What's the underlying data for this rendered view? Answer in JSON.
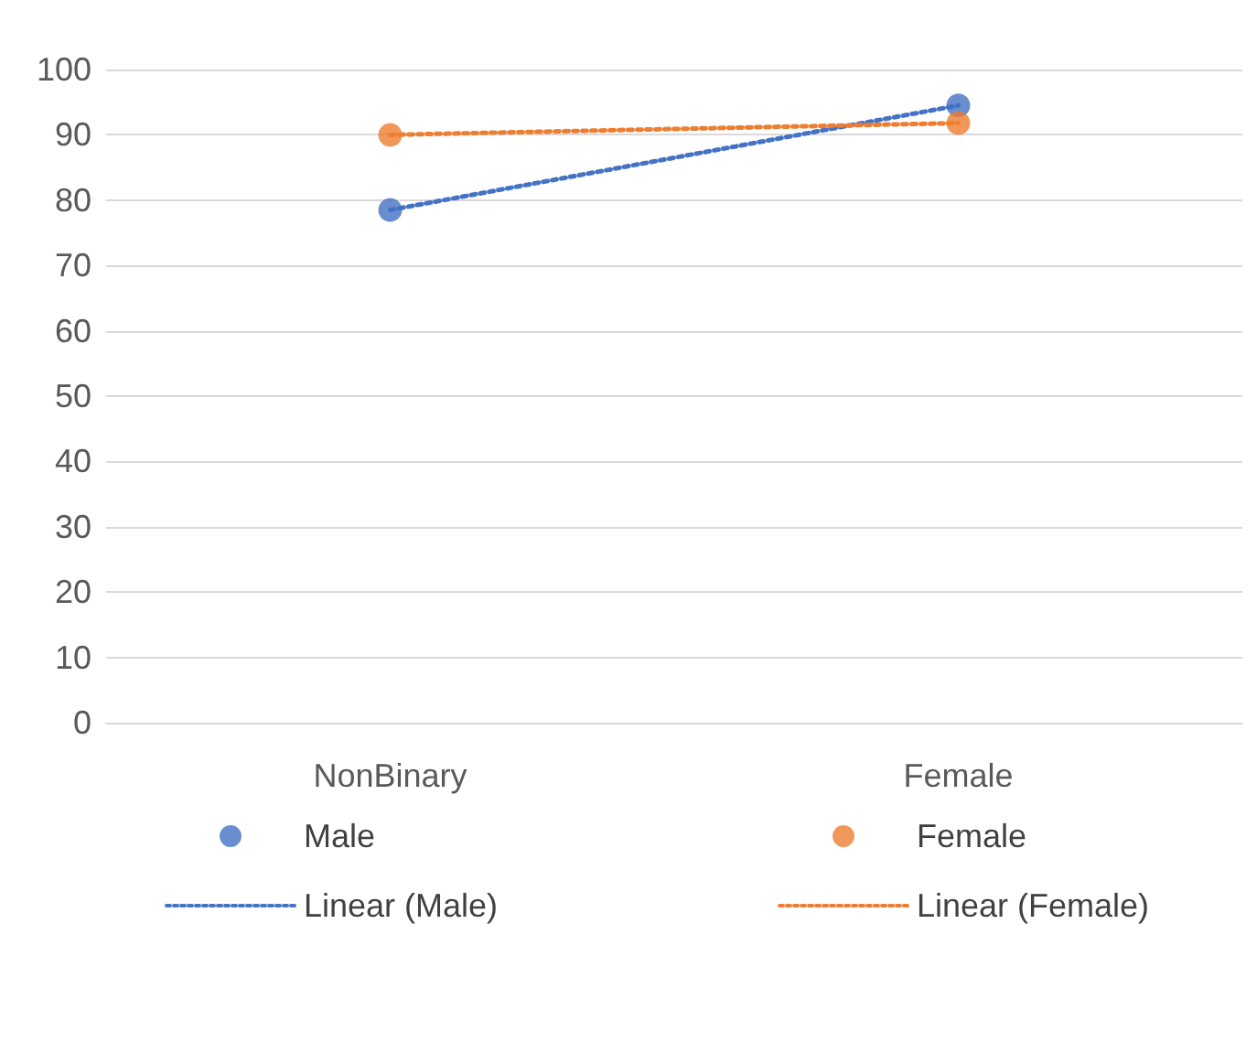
{
  "chart_data": {
    "type": "line",
    "categories": [
      "NonBinary",
      "Female"
    ],
    "series": [
      {
        "name": "Male",
        "type": "scatter",
        "color": "#4472c4",
        "values": [
          78.5,
          94.5
        ],
        "marker": "circle"
      },
      {
        "name": "Female",
        "type": "scatter",
        "color": "#ed7d31",
        "values": [
          90,
          91.8
        ],
        "marker": "circle"
      },
      {
        "name": "Linear (Male)",
        "type": "line",
        "color": "#4472c4",
        "values": [
          78.5,
          94.5
        ],
        "line_style": "dotted",
        "marker": "none"
      },
      {
        "name": "Linear (Female)",
        "type": "line",
        "color": "#ed7d31",
        "values": [
          90,
          91.8
        ],
        "line_style": "dotted",
        "marker": "none"
      }
    ],
    "ylim": [
      0,
      100
    ],
    "yticks": [
      0,
      10,
      20,
      30,
      40,
      50,
      60,
      70,
      80,
      90,
      100
    ],
    "grid": "y",
    "legend": "bottom"
  }
}
